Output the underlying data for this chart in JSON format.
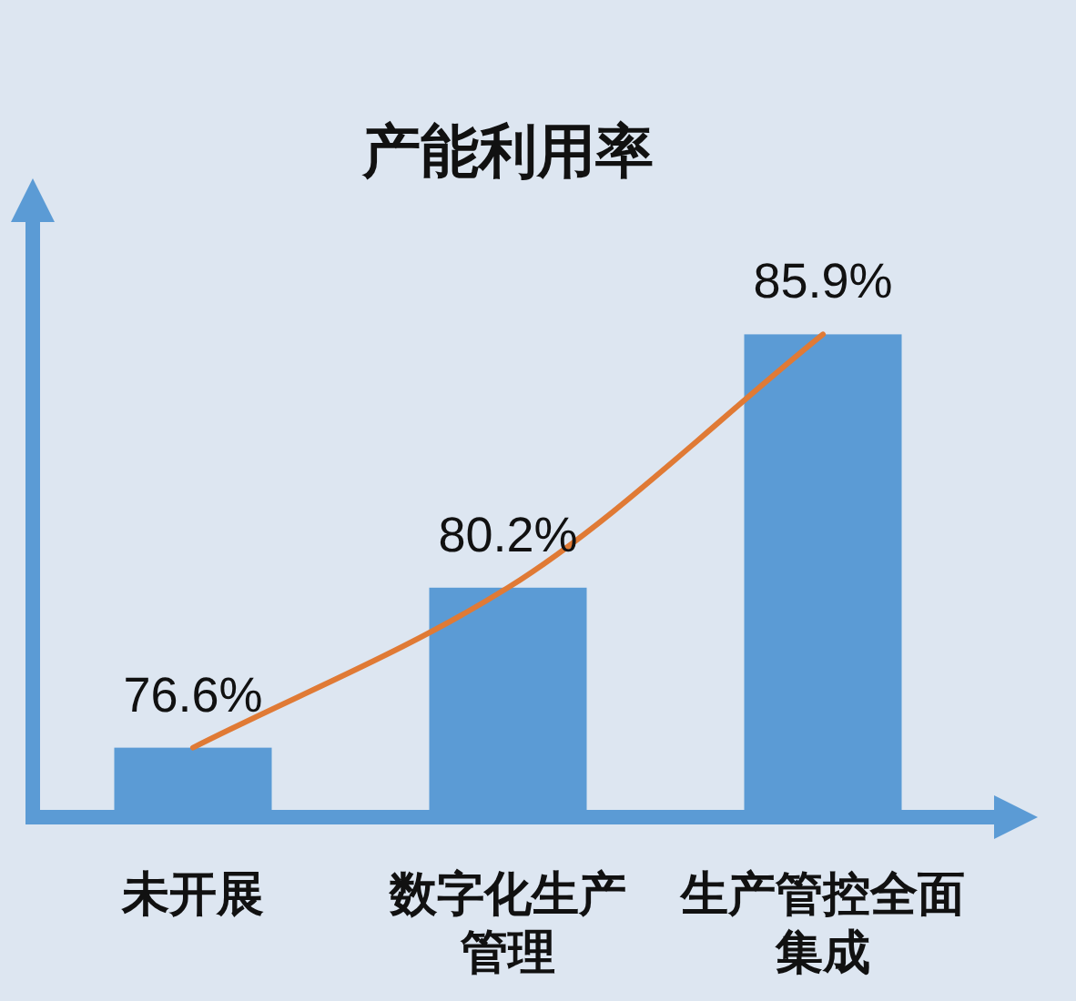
{
  "chart_data": {
    "type": "bar",
    "title": "产能利用率",
    "categories": [
      "未开展",
      "数字化生产管理",
      "生产管控全面集成"
    ],
    "series": [
      {
        "color": "#5b9bd5",
        "values": [
          76.6,
          80.2,
          85.9
        ],
        "value_labels": [
          "76.6%",
          "80.2%",
          "85.9%"
        ]
      },
      {
        "type": "line",
        "color": "#e07a35",
        "values": [
          76.6,
          80.2,
          85.9
        ]
      }
    ],
    "ylim": [
      75.2,
      89.0
    ],
    "tick_labels": "x"
  }
}
